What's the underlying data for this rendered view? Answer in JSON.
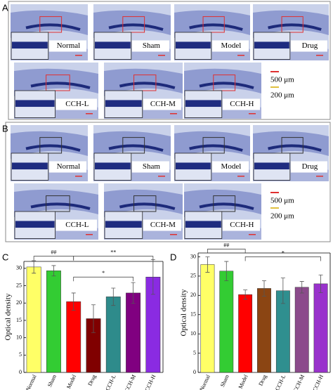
{
  "panels": [
    {
      "label": "A",
      "images": [
        "Normal",
        "Sham",
        "Model",
        "Drug",
        "CCH-L",
        "CCH-M",
        "CCH-H"
      ],
      "scale": [
        "500 μm",
        "200 μm"
      ]
    },
    {
      "label": "B",
      "images": [
        "Normal",
        "Sham",
        "Model",
        "Drug",
        "CCH-L",
        "CCH-M",
        "CCH-H"
      ],
      "scale": [
        "500 μm",
        "200 μm"
      ]
    }
  ],
  "chart_data": [
    {
      "type": "bar",
      "label": "C",
      "y_label": "Optical density",
      "categories": [
        "Normal",
        "Sham",
        "Model",
        "Drug",
        "CCH-L",
        "CCH-M",
        "CCH-H"
      ],
      "values": [
        30.4,
        29.3,
        20.4,
        15.5,
        21.8,
        22.9,
        27.5
      ],
      "errors": [
        1.8,
        1.5,
        2.5,
        4.0,
        2.5,
        3.0,
        5.0
      ],
      "colors": [
        "#ffff66",
        "#33cc33",
        "#ff0000",
        "#800000",
        "#2e8b8b",
        "#800080",
        "#8a2be2"
      ],
      "ylim": [
        0,
        32
      ],
      "yticks": [
        0,
        5,
        10,
        15,
        20,
        25,
        30
      ],
      "annotations": [
        "##",
        "**",
        "*"
      ]
    },
    {
      "type": "bar",
      "label": "D",
      "y_label": "Optical density",
      "categories": [
        "Normal",
        "Sham",
        "Model",
        "Drug",
        "CCH-L",
        "CCH-M",
        "CCH-H"
      ],
      "values": [
        28.0,
        26.3,
        20.2,
        21.8,
        21.2,
        22.1,
        23.0
      ],
      "errors": [
        2.0,
        2.5,
        1.2,
        2.0,
        3.3,
        1.5,
        2.3
      ],
      "colors": [
        "#ffff66",
        "#33cc33",
        "#ff0000",
        "#8b4513",
        "#2f8f8f",
        "#8b4a8b",
        "#9932cc"
      ],
      "ylim": [
        0,
        31
      ],
      "yticks": [
        0,
        5,
        10,
        15,
        20,
        25,
        30
      ],
      "annotations": [
        "##",
        "*"
      ]
    }
  ]
}
